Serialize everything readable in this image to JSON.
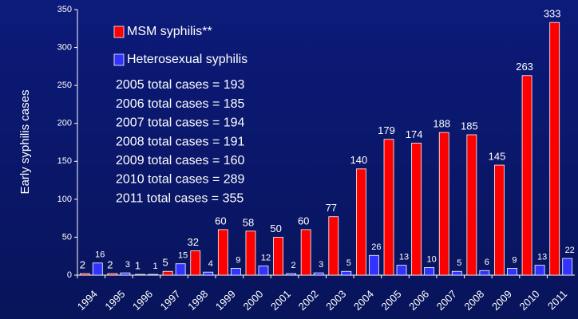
{
  "chart_data": {
    "type": "bar",
    "y_label": "Early syphilis cases",
    "categories": [
      "1994",
      "1995",
      "1996",
      "1997",
      "1998",
      "1999",
      "2000",
      "2001",
      "2002",
      "2003",
      "2004",
      "2005",
      "2006",
      "2007",
      "2008",
      "2009",
      "2010",
      "2011"
    ],
    "series": [
      {
        "name": "MSM syphilis**",
        "color": "#ff0000",
        "values": [
          2,
          2,
          1,
          5,
          32,
          60,
          58,
          50,
          60,
          77,
          140,
          179,
          174,
          188,
          185,
          145,
          263,
          333
        ]
      },
      {
        "name": "Heterosexual syphilis",
        "color": "#3333ff",
        "values": [
          16,
          3,
          1,
          15,
          4,
          9,
          12,
          2,
          3,
          5,
          26,
          13,
          10,
          5,
          6,
          9,
          13,
          22
        ]
      }
    ],
    "annotations": [
      "2005 total cases = 193",
      "2006 total cases = 185",
      "2007 total cases = 194",
      "2008 total cases = 191",
      "2009 total cases = 160",
      "2010 total cases = 289",
      "2011 total cases = 355"
    ],
    "ylim": [
      0,
      350
    ],
    "yticks": [
      0,
      50,
      100,
      150,
      200,
      250,
      300,
      350
    ],
    "grid": false
  }
}
